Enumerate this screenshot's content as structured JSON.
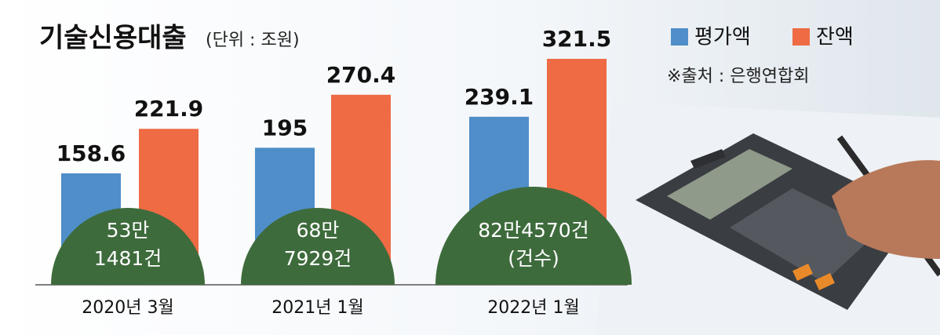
{
  "chart_data": {
    "type": "bar",
    "title": "기술신용대출",
    "subtitle": "(단위 : 조원)",
    "source": "※출처 : 은행연합회",
    "categories": [
      "2020년 3월",
      "2021년 1월",
      "2022년 1월"
    ],
    "series": [
      {
        "name": "평가액",
        "color": "#4f8ec9",
        "values": [
          158.6,
          195,
          239.1
        ]
      },
      {
        "name": "잔액",
        "color": "#ee6b44",
        "values": [
          221.9,
          270.4,
          321.5
        ]
      }
    ],
    "counts": [
      [
        "53만",
        "1481건"
      ],
      [
        "68만",
        "7929건"
      ],
      [
        "82만4570건",
        "(건수)"
      ]
    ],
    "count_color": "#3e6b3c",
    "legend": "top-right"
  }
}
